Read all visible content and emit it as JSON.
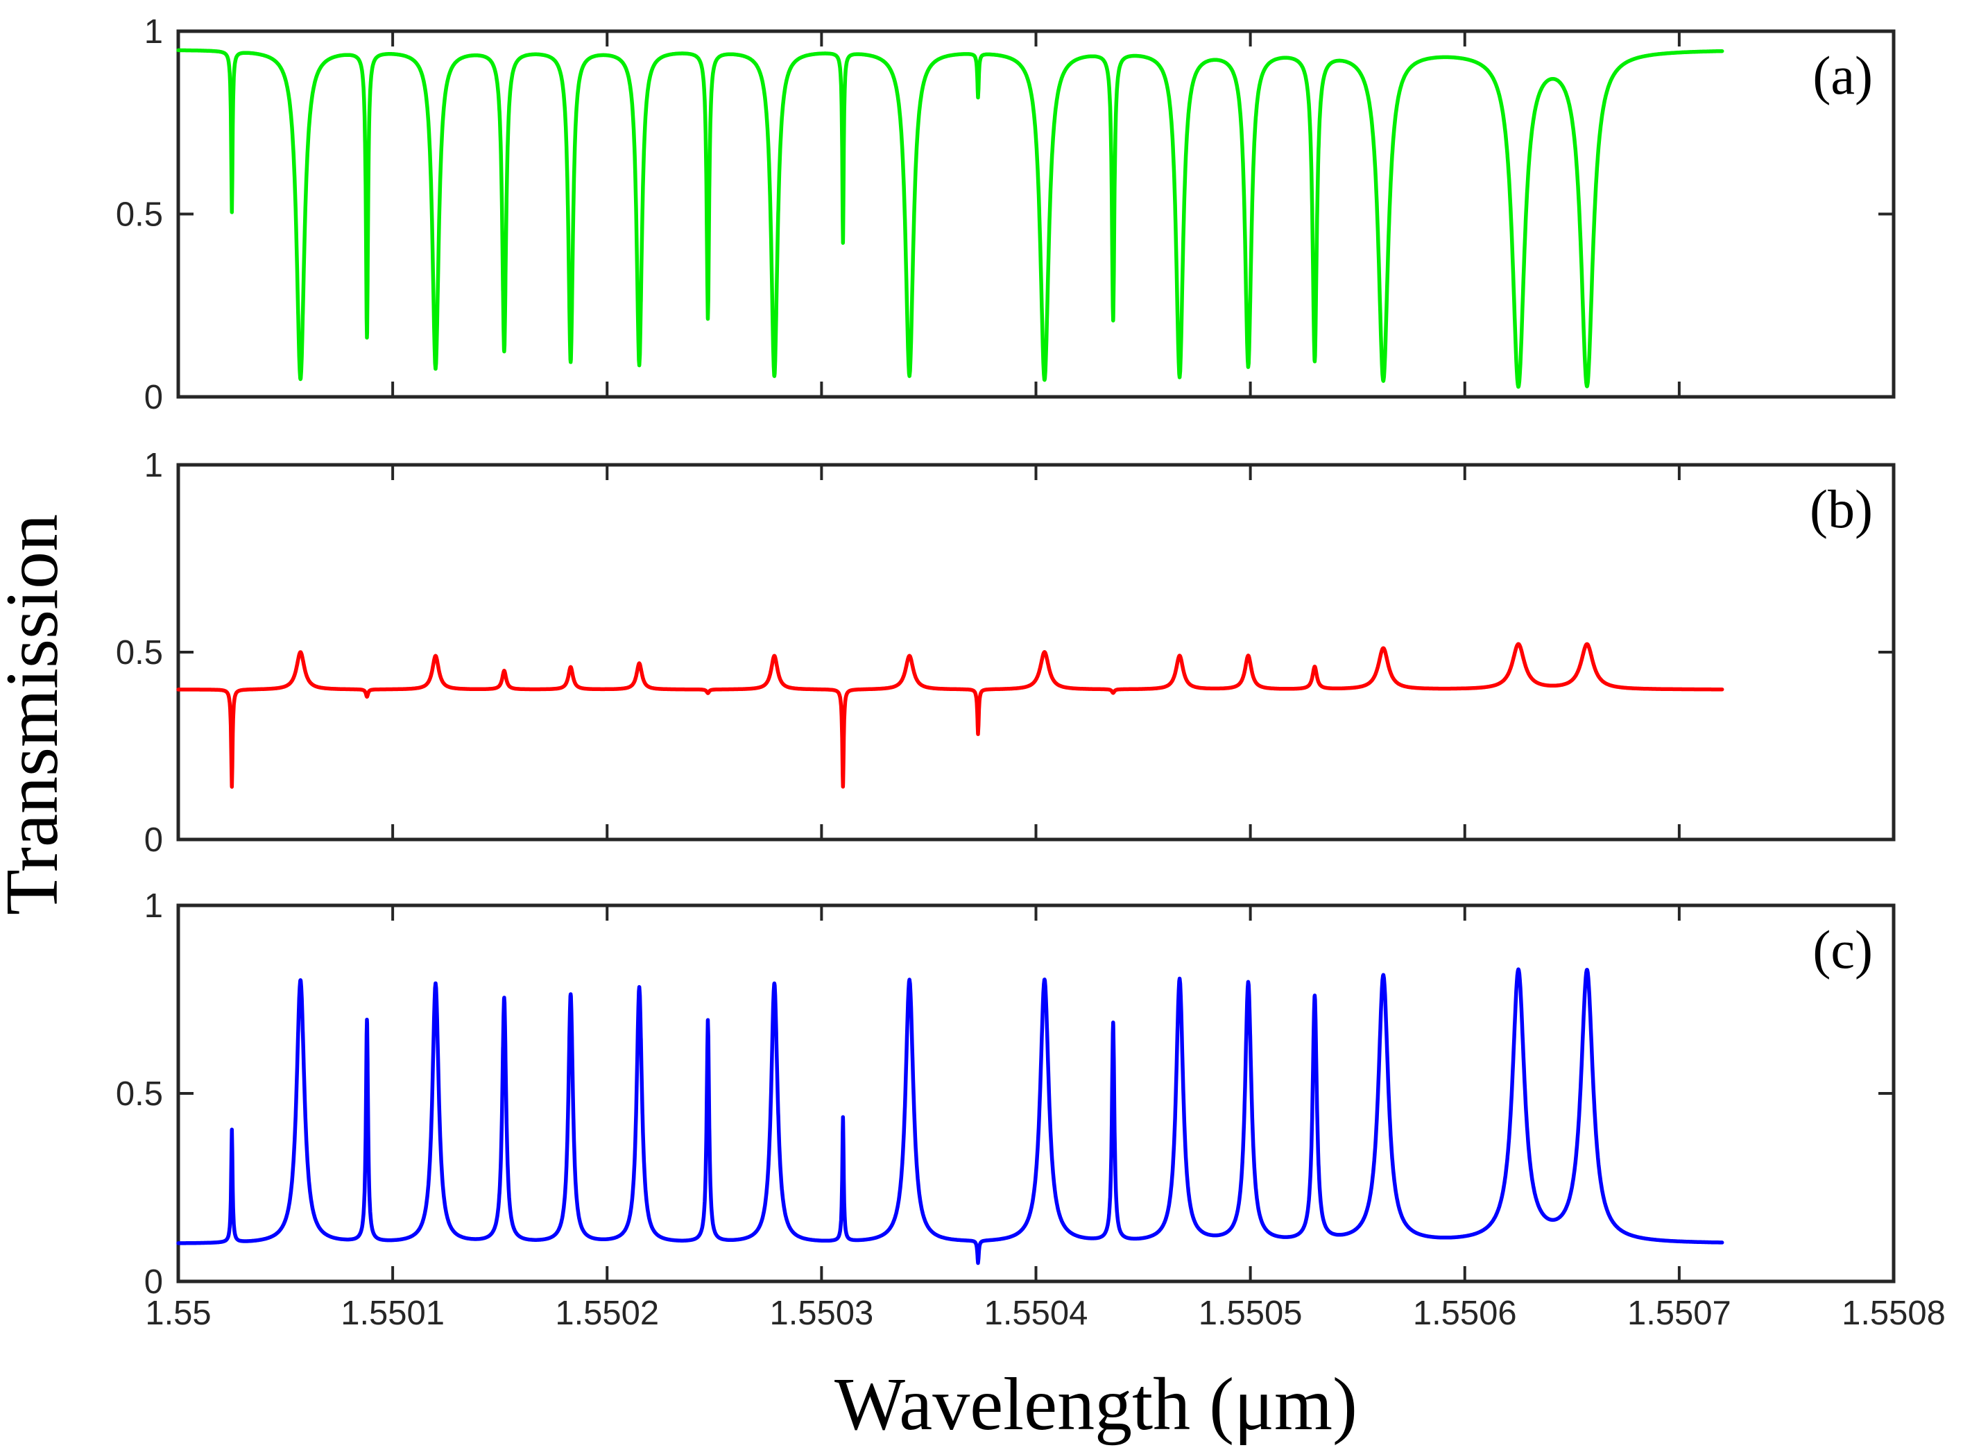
{
  "chart_data": {
    "type": "line",
    "xlabel": "Wavelength (μm)",
    "ylabel": "Transmission",
    "xlim": [
      1.55,
      1.5508
    ],
    "x_ticks": [
      1.55,
      1.5501,
      1.5502,
      1.5503,
      1.5504,
      1.5505,
      1.5506,
      1.5507,
      1.5508
    ],
    "x_tick_labels": [
      "1.55",
      "1.5501",
      "1.5502",
      "1.5503",
      "1.5504",
      "1.5505",
      "1.5506",
      "1.5507",
      "1.5508"
    ],
    "x_data_range": [
      1.55,
      1.55072
    ],
    "y_tick_labels": [
      "0",
      "0.5",
      "1"
    ],
    "ylim": [
      0,
      1
    ],
    "grid": false,
    "panels": [
      {
        "label": "(a)",
        "color": "#00ee00",
        "baseline": 0.95,
        "resonances": [
          {
            "x": 1.550025,
            "value": 0.51,
            "width": 4e-07
          },
          {
            "x": 1.550057,
            "value": 0.05,
            "width": 2.2e-06
          },
          {
            "x": 1.550088,
            "value": 0.17,
            "width": 6e-07
          },
          {
            "x": 1.55012,
            "value": 0.08,
            "width": 1.8e-06
          },
          {
            "x": 1.550152,
            "value": 0.13,
            "width": 1.1e-06
          },
          {
            "x": 1.550183,
            "value": 0.1,
            "width": 1.3e-06
          },
          {
            "x": 1.550215,
            "value": 0.09,
            "width": 1.5e-06
          },
          {
            "x": 1.550247,
            "value": 0.22,
            "width": 7e-07
          },
          {
            "x": 1.550278,
            "value": 0.06,
            "width": 1.8e-06
          },
          {
            "x": 1.55031,
            "value": 0.43,
            "width": 4e-07
          },
          {
            "x": 1.550341,
            "value": 0.06,
            "width": 2.2e-06
          },
          {
            "x": 1.550373,
            "value": 0.83,
            "width": 4e-07
          },
          {
            "x": 1.550404,
            "value": 0.05,
            "width": 2.4e-06
          },
          {
            "x": 1.550436,
            "value": 0.22,
            "width": 7e-07
          },
          {
            "x": 1.550467,
            "value": 0.06,
            "width": 2e-06
          },
          {
            "x": 1.550499,
            "value": 0.09,
            "width": 1.8e-06
          },
          {
            "x": 1.55053,
            "value": 0.11,
            "width": 1.2e-06
          },
          {
            "x": 1.550562,
            "value": 0.05,
            "width": 2.8e-06
          },
          {
            "x": 1.550625,
            "value": 0.04,
            "width": 3.4e-06
          },
          {
            "x": 1.550657,
            "value": 0.04,
            "width": 3.4e-06
          }
        ]
      },
      {
        "label": "(b)",
        "color": "#ff0000",
        "baseline": 0.4,
        "resonances": [
          {
            "x": 1.550025,
            "value": 0.14,
            "width": 4e-07
          },
          {
            "x": 1.550057,
            "value": 0.5,
            "width": 2.2e-06
          },
          {
            "x": 1.550088,
            "value": 0.38,
            "width": 6e-07
          },
          {
            "x": 1.55012,
            "value": 0.49,
            "width": 1.8e-06
          },
          {
            "x": 1.550152,
            "value": 0.45,
            "width": 1.1e-06
          },
          {
            "x": 1.550183,
            "value": 0.46,
            "width": 1.3e-06
          },
          {
            "x": 1.550215,
            "value": 0.47,
            "width": 1.5e-06
          },
          {
            "x": 1.550247,
            "value": 0.39,
            "width": 7e-07
          },
          {
            "x": 1.550278,
            "value": 0.49,
            "width": 1.8e-06
          },
          {
            "x": 1.55031,
            "value": 0.14,
            "width": 4e-07
          },
          {
            "x": 1.550341,
            "value": 0.49,
            "width": 2.2e-06
          },
          {
            "x": 1.550373,
            "value": 0.28,
            "width": 4e-07
          },
          {
            "x": 1.550404,
            "value": 0.5,
            "width": 2.4e-06
          },
          {
            "x": 1.550436,
            "value": 0.39,
            "width": 7e-07
          },
          {
            "x": 1.550467,
            "value": 0.49,
            "width": 2e-06
          },
          {
            "x": 1.550499,
            "value": 0.49,
            "width": 1.8e-06
          },
          {
            "x": 1.55053,
            "value": 0.46,
            "width": 1.2e-06
          },
          {
            "x": 1.550562,
            "value": 0.51,
            "width": 2.8e-06
          },
          {
            "x": 1.550625,
            "value": 0.52,
            "width": 3.4e-06
          },
          {
            "x": 1.550657,
            "value": 0.52,
            "width": 3.4e-06
          }
        ]
      },
      {
        "label": "(c)",
        "color": "#0000ff",
        "baseline": 0.1,
        "resonances": [
          {
            "x": 1.550025,
            "value": 0.4,
            "width": 4e-07
          },
          {
            "x": 1.550057,
            "value": 0.8,
            "width": 2.2e-06
          },
          {
            "x": 1.550088,
            "value": 0.69,
            "width": 6e-07
          },
          {
            "x": 1.55012,
            "value": 0.79,
            "width": 1.8e-06
          },
          {
            "x": 1.550152,
            "value": 0.75,
            "width": 1.1e-06
          },
          {
            "x": 1.550183,
            "value": 0.76,
            "width": 1.3e-06
          },
          {
            "x": 1.550215,
            "value": 0.78,
            "width": 1.5e-06
          },
          {
            "x": 1.550247,
            "value": 0.69,
            "width": 7e-07
          },
          {
            "x": 1.550278,
            "value": 0.79,
            "width": 1.8e-06
          },
          {
            "x": 1.55031,
            "value": 0.43,
            "width": 4e-07
          },
          {
            "x": 1.550341,
            "value": 0.8,
            "width": 2.2e-06
          },
          {
            "x": 1.550373,
            "value": 0.04,
            "width": 4e-07
          },
          {
            "x": 1.550404,
            "value": 0.8,
            "width": 2.4e-06
          },
          {
            "x": 1.550436,
            "value": 0.68,
            "width": 7e-07
          },
          {
            "x": 1.550467,
            "value": 0.8,
            "width": 2e-06
          },
          {
            "x": 1.550499,
            "value": 0.79,
            "width": 1.8e-06
          },
          {
            "x": 1.55053,
            "value": 0.75,
            "width": 1.2e-06
          },
          {
            "x": 1.550562,
            "value": 0.81,
            "width": 2.8e-06
          },
          {
            "x": 1.550625,
            "value": 0.82,
            "width": 3.4e-06
          },
          {
            "x": 1.550657,
            "value": 0.82,
            "width": 3.4e-06
          }
        ]
      }
    ]
  }
}
